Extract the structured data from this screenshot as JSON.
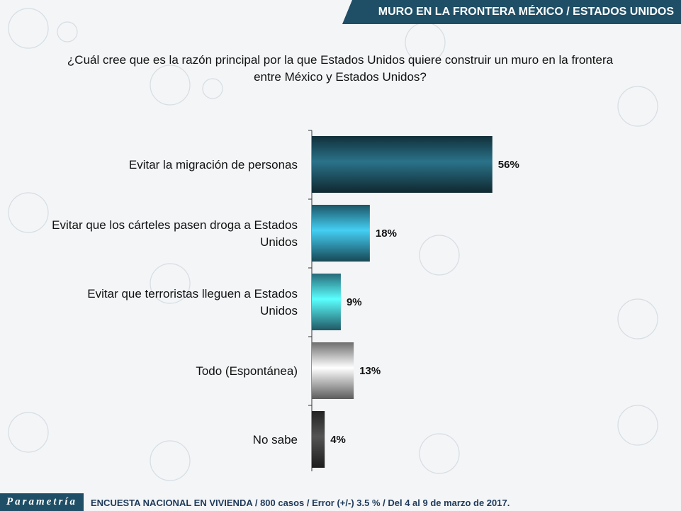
{
  "header": {
    "title": "MURO EN LA FRONTERA MÉXICO / ESTADOS UNIDOS"
  },
  "question": {
    "line1": "¿Cuál cree que es la razón principal por la que Estados Unidos quiere construir un muro en la frontera",
    "line2": "entre México y Estados Unidos?"
  },
  "chart_data": {
    "type": "bar",
    "orientation": "horizontal",
    "categories": [
      [
        "Evitar la migración de personas"
      ],
      [
        "Evitar que los cárteles pasen droga a Estados",
        "Unidos"
      ],
      [
        "Evitar que terroristas lleguen a Estados",
        "Unidos"
      ],
      [
        "Todo (Espontánea)"
      ],
      [
        "No sabe"
      ]
    ],
    "values": [
      56,
      18,
      9,
      13,
      4
    ],
    "value_labels": [
      "56%",
      "18%",
      "9%",
      "13%",
      "4%"
    ],
    "xlim": [
      0,
      100
    ],
    "colors": [
      "#1d4f5f",
      "#2f8fa8",
      "#3fb0c8",
      "#b8b8b8",
      "#3a3a3a"
    ]
  },
  "footer": {
    "logo": "Parametría",
    "note": "ENCUESTA NACIONAL EN VIVIENDA / 800 casos / Error (+/-) 3.5 % / Del 4 al 9 de marzo de 2017."
  }
}
